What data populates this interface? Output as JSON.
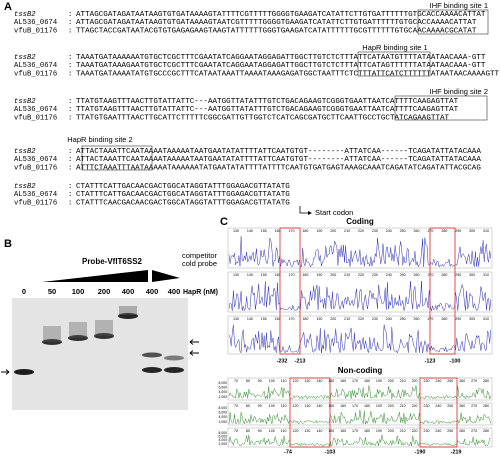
{
  "panels": {
    "a": "A",
    "b": "B",
    "c": "C"
  },
  "alignment": {
    "separator": ":",
    "blocks": [
      {
        "rows": [
          {
            "name": "tssB2",
            "seq": "ATTAGCGATAGATAATAAGTGTGATAAAAGTATTTTCGTTTTTGGGGTGAAGATCATATTCTTGTGATTTTTTGTGCACCAAAACATTAT"
          },
          {
            "name": "AL536_0674",
            "seq": "ATTAGCGATAGATAATAAGTGTGATAAAAGTAATCGTTTTTGGGGTGAAGATCATATTCTTGTGATTTTTTGTGCACCAAAACATTAT"
          },
          {
            "name": "vfuB_01176",
            "seq": "TTAGCTACCGATAATACGTGTGAGAGAAGTAAGTATTTTTTGGGTGAAGATCATATTTTTTGCGTTTTTTGTGCAACAAAACGCATAT"
          }
        ]
      },
      {
        "rows": [
          {
            "name": "tssB2",
            "seq": "TAAATGATAAAAAATGTGCTCGCTTTCGAATATCAGGAATAGGAGATTGGCTTGTCTCTTTATTCATAATGTTTTATAATAACAAA-GTT"
          },
          {
            "name": "AL536_0674",
            "seq": "TAAATGATAAAGAATGTGCTCGCTTTCGAATATCAGGAATAGGAGATTGGCTTGTCTCTTTATTCATAGTTTTTTATAATAACAAA-GTT"
          },
          {
            "name": "vfuB_01176",
            "seq": "TAAATGATAAAATATGTGCCCGCTTTCATAATAAATTAAAATAAAGAGATGGCTAATTTCTCTTTATTCATCTTTTTTATAATAACAAAAGTT"
          }
        ]
      },
      {
        "rows": [
          {
            "name": "tssB2",
            "seq": "TTATGTAAGTTTAACTTGTATTATTC---AATGGTTATATTTGTCTGACAGAAGTCGGGTGAATTAATCATTTTCAAGAGTTAT"
          },
          {
            "name": "AL536_0674",
            "seq": "TTATGTAAGTTTAACTTGTATTATTC---AATGGTTATATTTGTCTGACAGAAGTCGGGTGAATTAATCATTTTCAAGAGTTAT"
          },
          {
            "name": "vfuB_01176",
            "seq": "TTATGTGAATTTAACTTGCATTCTTTTTCGGCGATTGTTGGTCTCATCAGCGATGCTTCAATTGCCTGCTATCAGAAGTTAT"
          }
        ]
      },
      {
        "rows": [
          {
            "name": "tssB2",
            "seq": "ATTACTAAATTCAATAAAATAAAAATAATGAATATATTTTATTCAATGTGT--------ATTATCAA------TCAGATATTATACAAA"
          },
          {
            "name": "AL536_0674",
            "seq": "ATTACTAAATTCAATAAAATAAAAATAATGAATATATTTTATTCAATGTGT--------ATTATCAA------TCAGATATTATACAAA"
          },
          {
            "name": "vfuB_01176",
            "seq": "ATTTCTAAATTTAATAAAAATAAAAAATATGAATATATTTTATTTTCAATGTGATGAGTAAAGCAAATCAGATATCAGATATTACGCAG"
          }
        ]
      },
      {
        "rows": [
          {
            "name": "tssB2",
            "seq": "CTATTTCATTGACAACGACTGGCATAGGTATTTGGAGACGTTATATG"
          },
          {
            "name": "AL536_0674",
            "seq": "CTATTTCATTGACAACGACTGGCATAGGTATTTGGAGACGTTATATG"
          },
          {
            "name": "vfuB_01176",
            "seq": "CTATTTCAACGACAACGACTGGCATAGGTATTTGGAGACGTTATATG"
          }
        ]
      }
    ],
    "annotations": {
      "ihf1": "IHF binding site 1",
      "hapr1": "HapR binding site 1",
      "ihf2": "IHF binding site 2",
      "hapr2": "HapR binding site 2",
      "start": "Start codon"
    }
  },
  "gel": {
    "probe": "Probe-VflT6SS2",
    "competitor": [
      "competitor",
      "cold probe"
    ],
    "hapr_label": "HapR (nM)",
    "lanes": [
      "0",
      "50",
      "100",
      "200",
      "400",
      "400",
      "400"
    ]
  },
  "footprint": {
    "coding_title": "Coding",
    "noncoding_title": "Non-coding",
    "coding_ticks": [
      "130",
      "140",
      "150",
      "160",
      "170",
      "180",
      "190",
      "200",
      "210",
      "220",
      "230",
      "240",
      "250",
      "260",
      "270",
      "280",
      "290",
      "300",
      "310"
    ],
    "noncoding_ticks": [
      "70",
      "80",
      "90",
      "100",
      "110",
      "120",
      "130",
      "140",
      "150",
      "160",
      "170",
      "180",
      "190",
      "200",
      "210",
      "220",
      "230",
      "240",
      "250",
      "260",
      "270",
      "280"
    ],
    "noncoding_yticks": [
      "8,000",
      "6,000",
      "4,000",
      "2,000"
    ],
    "coding_positions": [
      "-232",
      "-213",
      "-123",
      "-100"
    ],
    "noncoding_positions": [
      "-74",
      "-103",
      "-190",
      "-219"
    ]
  }
}
